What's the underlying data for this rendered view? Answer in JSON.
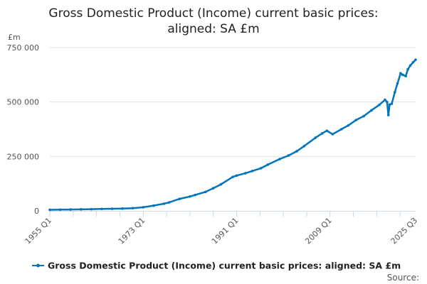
{
  "chart_data": {
    "type": "line",
    "title_lines": [
      "Gross Domestic Product (Income) current basic prices:",
      "aligned: SA £m"
    ],
    "ylabel": "£m",
    "ylim": [
      0,
      750000
    ],
    "yticks": [
      0,
      250000,
      500000,
      750000
    ],
    "ytick_labels": [
      "0",
      "250 000",
      "500 000",
      "750 000"
    ],
    "xlim": [
      1955.0,
      2025.5
    ],
    "xticks": [
      1955.0,
      1973.0,
      1991.0,
      2009.0,
      2025.5
    ],
    "xtick_labels": [
      "1955 Q1",
      "1973 Q1",
      "1991 Q1",
      "2009 Q1",
      "2025 Q3"
    ],
    "grid": true,
    "legend_position": "bottom",
    "source_label": "Source:",
    "series": [
      {
        "name": "Gross Domestic Product (Income) current basic prices: aligned: SA £m",
        "color": "#0075be",
        "x": [
          1955,
          1957,
          1959,
          1961,
          1963,
          1965,
          1967,
          1969,
          1971,
          1973,
          1975,
          1977,
          1978,
          1980,
          1982,
          1983,
          1985,
          1986.5,
          1988,
          1990.25,
          1991,
          1992.7,
          1994,
          1995.7,
          1997,
          1999.3,
          2001,
          2002.6,
          2004,
          2006.2,
          2007.5,
          2008.4,
          2009.5,
          2011.2,
          2012.5,
          2014,
          2015.5,
          2017,
          2018.5,
          2019.6,
          2020.0,
          2020.25,
          2020.5,
          2020.9,
          2021.5,
          2022.0,
          2022.6,
          2023.0,
          2023.6,
          2024.0,
          2024.5,
          2025.0,
          2025.5
        ],
        "y": [
          5000,
          5600,
          6200,
          7000,
          7700,
          8800,
          9700,
          10700,
          12500,
          16500,
          24000,
          33000,
          39000,
          55000,
          66000,
          73000,
          87000,
          104000,
          122000,
          156000,
          162000,
          173000,
          183000,
          196000,
          212000,
          238000,
          254000,
          274000,
          297000,
          336000,
          356000,
          368000,
          352000,
          375000,
          392000,
          417000,
          435000,
          462000,
          487000,
          510000,
          500000,
          440000,
          488000,
          492000,
          545000,
          585000,
          632000,
          625000,
          619000,
          650000,
          668000,
          682000,
          694000
        ]
      }
    ]
  }
}
